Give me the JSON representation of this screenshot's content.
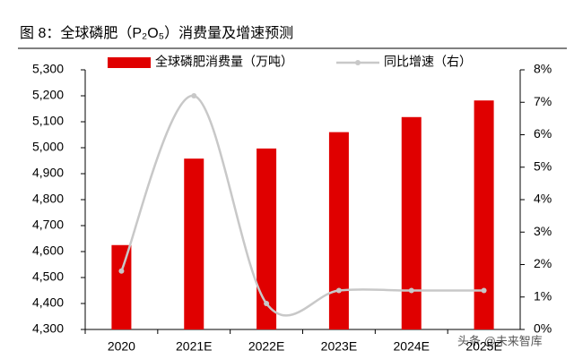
{
  "chart_data": {
    "type": "bar-line",
    "title": "图 8：全球磷肥（P₂O₅）消费量及增速预测",
    "categories": [
      "2020",
      "2021E",
      "2022E",
      "2023E",
      "2024E",
      "2025E"
    ],
    "series": [
      {
        "name": "全球磷肥消费量（万吨）",
        "type": "bar",
        "color": "#e00000",
        "values": [
          4625,
          4958,
          4997,
          5060,
          5118,
          5182
        ]
      },
      {
        "name": "同比增速（右）",
        "type": "line",
        "axis": "y2",
        "color": "#c8c8c8",
        "values": [
          1.8,
          7.2,
          0.8,
          1.2,
          1.2,
          1.2
        ]
      }
    ],
    "ylim": [
      4300,
      5300
    ],
    "yticks": [
      {
        "value": 4300,
        "label": "4,300"
      },
      {
        "value": 4400,
        "label": "4,400"
      },
      {
        "value": 4500,
        "label": "4,500"
      },
      {
        "value": 4600,
        "label": "4,600"
      },
      {
        "value": 4700,
        "label": "4,700"
      },
      {
        "value": 4800,
        "label": "4,800"
      },
      {
        "value": 4900,
        "label": "4,900"
      },
      {
        "value": 5000,
        "label": "5,000"
      },
      {
        "value": 5100,
        "label": "5,100"
      },
      {
        "value": 5200,
        "label": "5,200"
      },
      {
        "value": 5300,
        "label": "5,300"
      }
    ],
    "y2lim": [
      0,
      8
    ],
    "y2ticks": [
      {
        "value": 0,
        "label": "0%"
      },
      {
        "value": 1,
        "label": "1%"
      },
      {
        "value": 2,
        "label": "2%"
      },
      {
        "value": 3,
        "label": "3%"
      },
      {
        "value": 4,
        "label": "4%"
      },
      {
        "value": 5,
        "label": "5%"
      },
      {
        "value": 6,
        "label": "6%"
      },
      {
        "value": 7,
        "label": "7%"
      },
      {
        "value": 8,
        "label": "8%"
      }
    ],
    "watermark": "头条 @未来智库"
  }
}
